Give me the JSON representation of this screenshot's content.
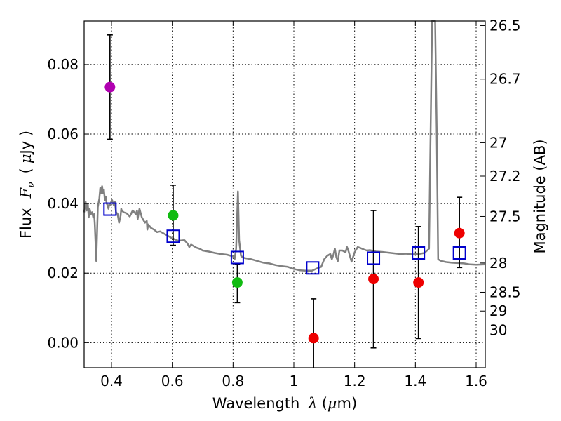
{
  "chart_data": {
    "type": "scatter",
    "xlabel_prefix": "Wavelength",
    "xlabel_symbol": "λ",
    "xlabel_unit_open": "(",
    "xlabel_unit_mu": "μ",
    "xlabel_unit_rest": "m)",
    "ylabel_prefix": "Flux",
    "ylabel_symbol": "F",
    "ylabel_sub": "ν",
    "ylabel_unit_open": "(",
    "ylabel_unit_mu": "μ",
    "ylabel_unit_rest": "Jy )",
    "y2label": "Magnitude (AB)",
    "xlim": [
      0.31,
      1.63
    ],
    "ylim": [
      -0.0072,
      0.0925
    ],
    "grid": true,
    "x_ticks": [
      {
        "value": 0.4,
        "label": "0.4"
      },
      {
        "value": 0.6,
        "label": "0.6"
      },
      {
        "value": 0.8,
        "label": "0.8"
      },
      {
        "value": 1.0,
        "label": "1"
      },
      {
        "value": 1.2,
        "label": "1.2"
      },
      {
        "value": 1.4,
        "label": "1.4"
      },
      {
        "value": 1.6,
        "label": "1.6"
      }
    ],
    "y_ticks": [
      {
        "value": 0.0,
        "label": "0.00"
      },
      {
        "value": 0.02,
        "label": "0.02"
      },
      {
        "value": 0.04,
        "label": "0.04"
      },
      {
        "value": 0.06,
        "label": "0.06"
      },
      {
        "value": 0.08,
        "label": "0.08"
      }
    ],
    "y2_ticks": [
      {
        "label": "26.5",
        "flux": 0.0912
      },
      {
        "label": "26.7",
        "flux": 0.0758
      },
      {
        "label": "27",
        "flux": 0.0575
      },
      {
        "label": "27.2",
        "flux": 0.0479
      },
      {
        "label": "27.5",
        "flux": 0.0363
      },
      {
        "label": "28",
        "flux": 0.0229
      },
      {
        "label": "28.5",
        "flux": 0.0145
      },
      {
        "label": "29",
        "flux": 0.0091
      },
      {
        "label": "30",
        "flux": 0.0036
      }
    ],
    "observed": [
      {
        "wavelength": 0.395,
        "flux": 0.0735,
        "err_low": 0.0585,
        "err_high": 0.0885,
        "color": "#b000b0"
      },
      {
        "wavelength": 0.603,
        "flux": 0.0366,
        "err_low": 0.028,
        "err_high": 0.0453,
        "color": "#11bb11"
      },
      {
        "wavelength": 0.814,
        "flux": 0.0173,
        "err_low": 0.0115,
        "err_high": 0.0225,
        "color": "#11bb11"
      },
      {
        "wavelength": 1.065,
        "flux": 0.0013,
        "err_low": -0.0072,
        "err_high": 0.0126,
        "color": "#ee0000"
      },
      {
        "wavelength": 1.262,
        "flux": 0.0183,
        "err_low": -0.0015,
        "err_high": 0.038,
        "color": "#ee0000"
      },
      {
        "wavelength": 1.41,
        "flux": 0.0173,
        "err_low": 0.0012,
        "err_high": 0.0334,
        "color": "#ee0000"
      },
      {
        "wavelength": 1.545,
        "flux": 0.0315,
        "err_low": 0.0216,
        "err_high": 0.0418,
        "color": "#ee0000"
      }
    ],
    "model_photometry": {
      "color": "#0000cc",
      "points": [
        {
          "wavelength": 0.395,
          "flux": 0.0384
        },
        {
          "wavelength": 0.603,
          "flux": 0.0306
        },
        {
          "wavelength": 0.814,
          "flux": 0.0245
        },
        {
          "wavelength": 1.062,
          "flux": 0.0215
        },
        {
          "wavelength": 1.262,
          "flux": 0.0243
        },
        {
          "wavelength": 1.41,
          "flux": 0.0258
        },
        {
          "wavelength": 1.545,
          "flux": 0.0258
        }
      ]
    },
    "sed": {
      "color": "#808080",
      "wavelength": [
        0.31,
        0.315,
        0.318,
        0.322,
        0.325,
        0.328,
        0.332,
        0.336,
        0.34,
        0.343,
        0.345,
        0.35,
        0.355,
        0.36,
        0.363,
        0.366,
        0.369,
        0.372,
        0.375,
        0.378,
        0.381,
        0.384,
        0.387,
        0.39,
        0.393,
        0.396,
        0.399,
        0.402,
        0.405,
        0.408,
        0.411,
        0.415,
        0.42,
        0.425,
        0.43,
        0.432,
        0.434,
        0.44,
        0.45,
        0.46,
        0.47,
        0.48,
        0.484,
        0.486,
        0.488,
        0.492,
        0.5,
        0.51,
        0.516,
        0.518,
        0.521,
        0.53,
        0.54,
        0.55,
        0.56,
        0.58,
        0.6,
        0.62,
        0.64,
        0.65,
        0.656,
        0.662,
        0.67,
        0.68,
        0.69,
        0.7,
        0.72,
        0.74,
        0.76,
        0.78,
        0.8,
        0.805,
        0.81,
        0.816,
        0.82,
        0.826,
        0.832,
        0.84,
        0.86,
        0.88,
        0.9,
        0.92,
        0.94,
        0.96,
        0.98,
        1.0,
        1.02,
        1.04,
        1.06,
        1.08,
        1.09,
        1.1,
        1.11,
        1.12,
        1.125,
        1.13,
        1.135,
        1.14,
        1.145,
        1.15,
        1.16,
        1.17,
        1.175,
        1.18,
        1.19,
        1.2,
        1.21,
        1.22,
        1.23,
        1.24,
        1.25,
        1.27,
        1.29,
        1.31,
        1.33,
        1.35,
        1.37,
        1.39,
        1.41,
        1.43,
        1.445,
        1.45,
        1.455,
        1.46,
        1.465,
        1.47,
        1.475,
        1.48,
        1.485,
        1.5,
        1.52,
        1.54,
        1.56,
        1.58,
        1.6,
        1.63
      ],
      "flux": [
        0.0375,
        0.0405,
        0.038,
        0.04,
        0.036,
        0.0385,
        0.037,
        0.0375,
        0.036,
        0.037,
        0.034,
        0.0235,
        0.039,
        0.0415,
        0.0445,
        0.043,
        0.045,
        0.043,
        0.044,
        0.041,
        0.042,
        0.04,
        0.0395,
        0.0385,
        0.04,
        0.0395,
        0.0405,
        0.041,
        0.04,
        0.0395,
        0.0405,
        0.0375,
        0.037,
        0.0345,
        0.0365,
        0.0385,
        0.038,
        0.0375,
        0.0372,
        0.0363,
        0.038,
        0.037,
        0.038,
        0.0355,
        0.0365,
        0.0385,
        0.036,
        0.0345,
        0.035,
        0.0325,
        0.034,
        0.033,
        0.0325,
        0.0318,
        0.032,
        0.031,
        0.03,
        0.0293,
        0.0295,
        0.0285,
        0.0275,
        0.0282,
        0.0278,
        0.0273,
        0.027,
        0.0265,
        0.0262,
        0.0258,
        0.0255,
        0.0253,
        0.0248,
        0.024,
        0.027,
        0.0435,
        0.0295,
        0.025,
        0.0245,
        0.0243,
        0.024,
        0.0235,
        0.023,
        0.0228,
        0.0223,
        0.022,
        0.0218,
        0.0212,
        0.0208,
        0.0207,
        0.0207,
        0.0215,
        0.0218,
        0.024,
        0.025,
        0.0255,
        0.024,
        0.0252,
        0.027,
        0.0245,
        0.0235,
        0.0265,
        0.0265,
        0.026,
        0.0275,
        0.0263,
        0.0233,
        0.026,
        0.0275,
        0.0272,
        0.0268,
        0.0265,
        0.0266,
        0.0262,
        0.0261,
        0.0259,
        0.0257,
        0.0255,
        0.0256,
        0.0254,
        0.0255,
        0.0258,
        0.027,
        0.06,
        0.0925,
        0.0925,
        0.0925,
        0.062,
        0.024,
        0.0237,
        0.0235,
        0.0232,
        0.023,
        0.0229,
        0.0228,
        0.0225,
        0.0224,
        0.0225
      ]
    }
  }
}
